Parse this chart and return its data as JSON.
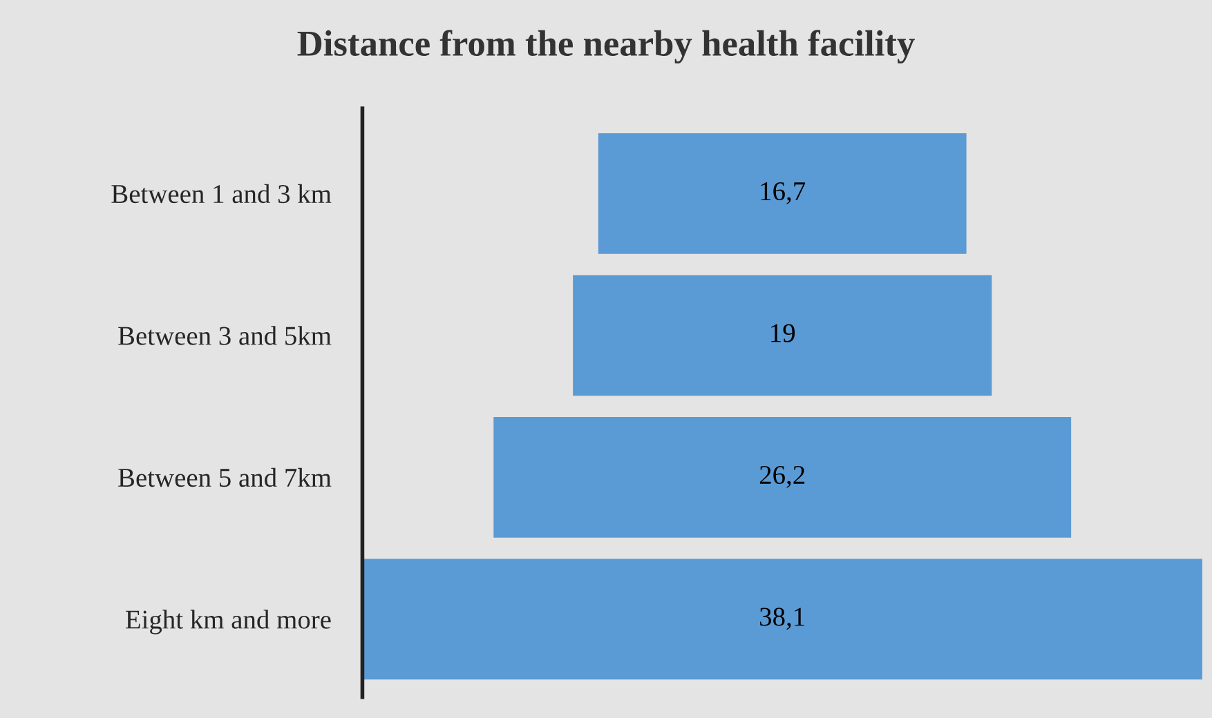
{
  "chart_data": {
    "type": "other",
    "title": "Distance from the nearby health facility",
    "categories": [
      "Between 1 and 3 km",
      "Between 3 and 5km",
      "Between 5 and 7km",
      "Eight km and more"
    ],
    "values": [
      16.7,
      19,
      26.2,
      38.1
    ],
    "value_labels": [
      "16,7",
      "19",
      "26,2",
      "38,1"
    ],
    "color": "#5b9bd5"
  }
}
